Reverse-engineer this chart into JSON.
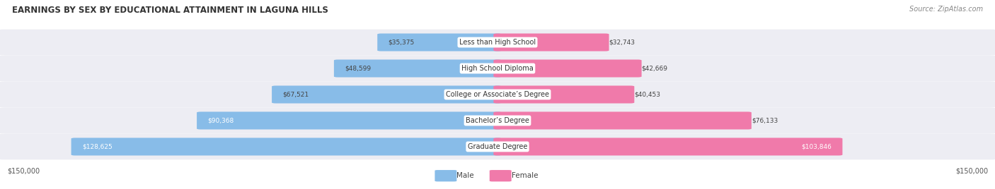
{
  "title": "EARNINGS BY SEX BY EDUCATIONAL ATTAINMENT IN LAGUNA HILLS",
  "source": "Source: ZipAtlas.com",
  "categories": [
    "Less than High School",
    "High School Diploma",
    "College or Associate’s Degree",
    "Bachelor’s Degree",
    "Graduate Degree"
  ],
  "male_values": [
    35375,
    48599,
    67521,
    90368,
    128625
  ],
  "female_values": [
    32743,
    42669,
    40453,
    76133,
    103846
  ],
  "max_value": 150000,
  "male_color": "#88bce8",
  "female_color": "#f07aaa",
  "male_label": "Male",
  "female_label": "Female",
  "bg_color": "#ffffff",
  "row_bg_color": "#ededf3",
  "title_color": "#333333",
  "source_color": "#888888",
  "value_color_dark": "#444444",
  "value_color_white": "#ffffff",
  "category_bg": "#ffffff",
  "title_fontsize": 8.5,
  "source_fontsize": 7.0,
  "bar_fontsize": 6.5,
  "cat_fontsize": 7.0,
  "tick_fontsize": 7.0,
  "legend_fontsize": 7.5
}
